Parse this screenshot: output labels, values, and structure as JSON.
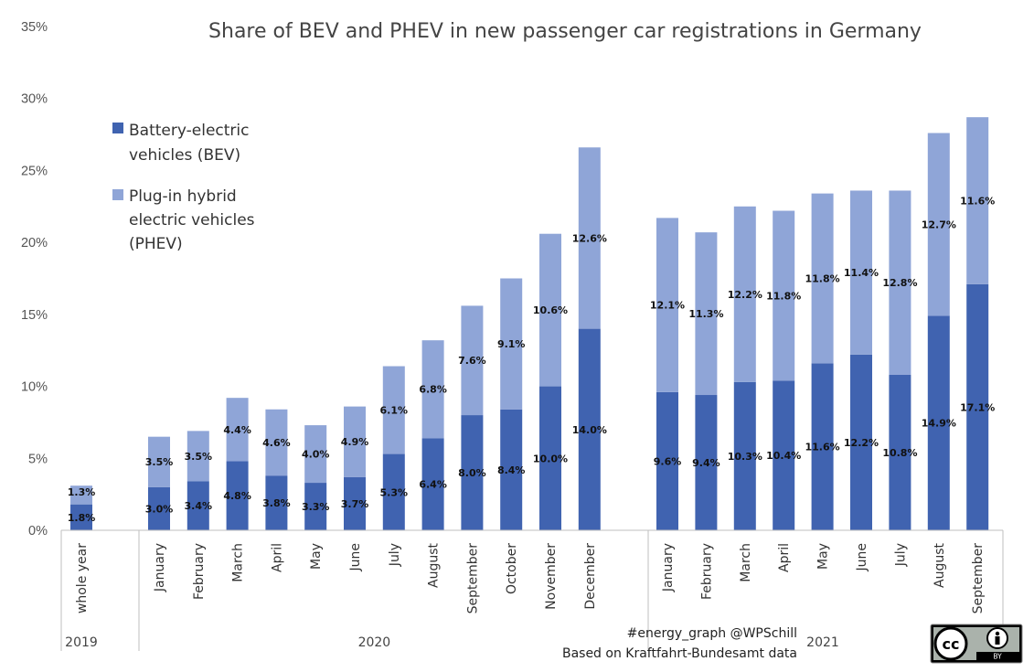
{
  "chart_data": {
    "type": "bar",
    "stacked": true,
    "title": "Share of BEV and PHEV in new passenger car registrations in Germany",
    "xlabel": "",
    "ylabel": "",
    "ylim": [
      0,
      35
    ],
    "y_ticks": [
      "0%",
      "5%",
      "10%",
      "15%",
      "20%",
      "25%",
      "30%",
      "35%"
    ],
    "categories": [
      "whole year",
      "January",
      "February",
      "March",
      "April",
      "May",
      "June",
      "July",
      "August",
      "September",
      "October",
      "November",
      "December",
      "January",
      "February",
      "March",
      "April",
      "May",
      "June",
      "July",
      "August",
      "September"
    ],
    "groups": [
      {
        "label": "2019",
        "count": 1
      },
      {
        "label": "2020",
        "count": 12
      },
      {
        "label": "2021",
        "count": 9
      }
    ],
    "series": [
      {
        "name": "Battery-electric vehicles (BEV)",
        "color": "#4063b0",
        "values": [
          1.8,
          3.0,
          3.4,
          4.8,
          3.8,
          3.3,
          3.7,
          5.3,
          6.4,
          8.0,
          8.4,
          10.0,
          14.0,
          9.6,
          9.4,
          10.3,
          10.4,
          11.6,
          12.2,
          10.8,
          14.9,
          17.1
        ],
        "labels": [
          "1.8%",
          "3.0%",
          "3.4%",
          "4.8%",
          "3.8%",
          "3.3%",
          "3.7%",
          "5.3%",
          "6.4%",
          "8.0%",
          "8.4%",
          "10.0%",
          "14.0%",
          "9.6%",
          "9.4%",
          "10.3%",
          "10.4%",
          "11.6%",
          "12.2%",
          "10.8%",
          "14.9%",
          "17.1%"
        ]
      },
      {
        "name": "Plug-in hybrid electric vehicles (PHEV)",
        "color": "#8fa5d7",
        "values": [
          1.3,
          3.5,
          3.5,
          4.4,
          4.6,
          4.0,
          4.9,
          6.1,
          6.8,
          7.6,
          9.1,
          10.6,
          12.6,
          12.1,
          11.3,
          12.2,
          11.8,
          11.8,
          11.4,
          12.8,
          12.7,
          11.6
        ],
        "labels": [
          "1.3%",
          "3.5%",
          "3.5%",
          "4.4%",
          "4.6%",
          "4.0%",
          "4.9%",
          "6.1%",
          "6.8%",
          "7.6%",
          "9.1%",
          "10.6%",
          "12.6%",
          "12.1%",
          "11.3%",
          "12.2%",
          "11.8%",
          "11.8%",
          "11.4%",
          "12.8%",
          "12.7%",
          "11.6%"
        ]
      }
    ],
    "grid": false,
    "legend_position": "top-left"
  },
  "legend": {
    "bev_lines": [
      "Battery-electric",
      "vehicles (BEV)"
    ],
    "phev_lines": [
      "Plug-in hybrid",
      "electric vehicles",
      "(PHEV)"
    ]
  },
  "credits": {
    "line1": "#energy_graph @WPSchill",
    "line2": "Based on Kraftfahrt-Bundesamt data",
    "license_cc": "cc",
    "license_by": "BY",
    "license_icon": "creative-commons-by-icon"
  }
}
